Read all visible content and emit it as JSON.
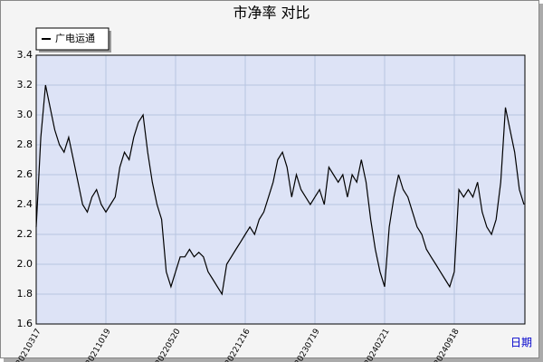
{
  "chart_data": {
    "type": "line",
    "title": "市净率  对比",
    "x_label": "日期",
    "categories": [
      "20210317",
      null,
      null,
      null,
      null,
      null,
      null,
      null,
      null,
      null,
      null,
      null,
      null,
      null,
      null,
      "20211019",
      null,
      null,
      null,
      null,
      null,
      null,
      null,
      null,
      null,
      null,
      null,
      null,
      null,
      null,
      "20220520",
      null,
      null,
      null,
      null,
      null,
      null,
      null,
      null,
      null,
      null,
      null,
      null,
      null,
      null,
      "20221216",
      null,
      null,
      null,
      null,
      null,
      null,
      null,
      null,
      null,
      null,
      null,
      null,
      null,
      null,
      "20230719",
      null,
      null,
      null,
      null,
      null,
      null,
      null,
      null,
      null,
      null,
      null,
      null,
      null,
      null,
      "20240221",
      null,
      null,
      null,
      null,
      null,
      null,
      null,
      null,
      null,
      null,
      null,
      null,
      null,
      null,
      "20240918",
      null,
      null,
      null,
      null,
      null,
      null,
      null,
      null,
      null,
      null,
      null,
      null,
      null,
      null,
      null
    ],
    "series": [
      {
        "name": "广电运通",
        "color": "#000000",
        "values": [
          2.25,
          2.85,
          3.2,
          3.05,
          2.9,
          2.8,
          2.75,
          2.85,
          2.7,
          2.55,
          2.4,
          2.35,
          2.45,
          2.5,
          2.4,
          2.35,
          2.4,
          2.45,
          2.65,
          2.75,
          2.7,
          2.85,
          2.95,
          3.0,
          2.75,
          2.55,
          2.4,
          2.3,
          1.95,
          1.85,
          1.95,
          2.05,
          2.05,
          2.1,
          2.05,
          2.08,
          2.05,
          1.95,
          1.9,
          1.85,
          1.8,
          2.0,
          2.05,
          2.1,
          2.15,
          2.2,
          2.25,
          2.2,
          2.3,
          2.35,
          2.45,
          2.55,
          2.7,
          2.75,
          2.65,
          2.45,
          2.6,
          2.5,
          2.45,
          2.4,
          2.45,
          2.5,
          2.4,
          2.65,
          2.6,
          2.55,
          2.6,
          2.45,
          2.6,
          2.55,
          2.7,
          2.55,
          2.3,
          2.1,
          1.95,
          1.85,
          2.25,
          2.45,
          2.6,
          2.5,
          2.45,
          2.35,
          2.25,
          2.2,
          2.1,
          2.05,
          2.0,
          1.95,
          1.9,
          1.85,
          1.95,
          2.5,
          2.45,
          2.5,
          2.45,
          2.55,
          2.35,
          2.25,
          2.2,
          2.3,
          2.55,
          3.05,
          2.9,
          2.75,
          2.5,
          2.4
        ]
      }
    ],
    "ylim": [
      1.6,
      3.4
    ],
    "yticks": [
      {
        "value": 1.6,
        "label": "1.6"
      },
      {
        "value": 1.8,
        "label": "1.8"
      },
      {
        "value": 2.0,
        "label": "2.0"
      },
      {
        "value": 2.2,
        "label": "2.2"
      },
      {
        "value": 2.4,
        "label": "2.4"
      },
      {
        "value": 2.6,
        "label": "2.6"
      },
      {
        "value": 2.8,
        "label": "2.8"
      },
      {
        "value": 3.0,
        "label": "3.0"
      },
      {
        "value": 3.2,
        "label": "3.2"
      },
      {
        "value": 3.4,
        "label": "3.4"
      }
    ],
    "grid": true,
    "legend": "top-left"
  }
}
